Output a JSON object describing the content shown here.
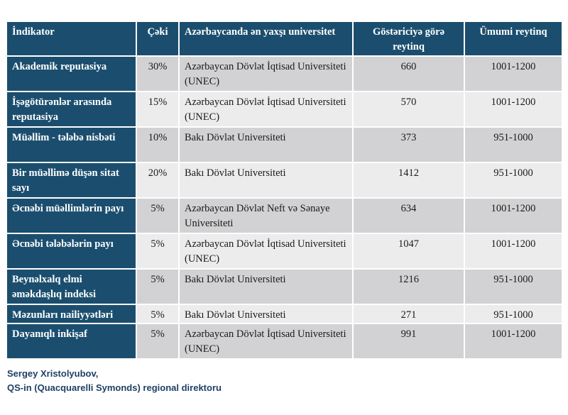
{
  "table": {
    "headers": {
      "indicator": "İndikator",
      "weight": "Çəki",
      "best_university": "Azərbaycanda ən yaxşı universitet",
      "indicator_rank": "Göstəriciyə görə reytinq",
      "overall_rank": "Ümumi reytinq"
    },
    "rows": [
      {
        "indicator": "Akademik reputasiya",
        "weight": "30%",
        "university": "Azərbaycan Dövlət İqtisad Universiteti (UNEC)",
        "indicator_rank": "660",
        "overall_rank": "1001-1200"
      },
      {
        "indicator": "İşəgötürənlər arasında reputasiya",
        "weight": "15%",
        "university": "Azərbaycan Dövlət İqtisad Universiteti (UNEC)",
        "indicator_rank": "570",
        "overall_rank": "1001-1200"
      },
      {
        "indicator": "Müəllim - tələbə nisbəti",
        "weight": "10%",
        "university": "Bakı Dövlət Universiteti",
        "indicator_rank": "373",
        "overall_rank": "951-1000"
      },
      {
        "indicator": "Bir müəllimə düşən sitat sayı",
        "weight": "20%",
        "university": "Bakı Dövlət Universiteti",
        "indicator_rank": "1412",
        "overall_rank": "951-1000"
      },
      {
        "indicator": "Əcnəbi müəllimlərin payı",
        "weight": "5%",
        "university": "Azərbaycan Dövlət Neft və Sənaye Universiteti",
        "indicator_rank": "634",
        "overall_rank": "1001-1200"
      },
      {
        "indicator": "Əcnəbi tələbələrin payı",
        "weight": "5%",
        "university": "Azərbaycan Dövlət İqtisad Universiteti (UNEC)",
        "indicator_rank": "1047",
        "overall_rank": "1001-1200"
      },
      {
        "indicator": "Beynəlxalq elmi əməkdaşlıq indeksi",
        "weight": "5%",
        "university": "Bakı Dövlət Universiteti",
        "indicator_rank": "1216",
        "overall_rank": "951-1000"
      },
      {
        "indicator": "Məzunları nailiyyətləri",
        "weight": "5%",
        "university": "Bakı Dövlət Universiteti",
        "indicator_rank": "271",
        "overall_rank": "951-1000"
      },
      {
        "indicator": "Dayanıqlı inkişaf",
        "weight": "5%",
        "university": "Azərbaycan Dövlət İqtisad Universiteti (UNEC)",
        "indicator_rank": "991",
        "overall_rank": "1001-1200"
      }
    ]
  },
  "footer": {
    "line1": "Sergey Xristolyubov,",
    "line2": "QS-in (Quacquarelli Symonds) regional direktoru"
  },
  "colors": {
    "header_bg": "#1b4e6e",
    "row_odd": "#d2d2d4",
    "row_even": "#ececed",
    "footer_text": "#1f3f66"
  }
}
